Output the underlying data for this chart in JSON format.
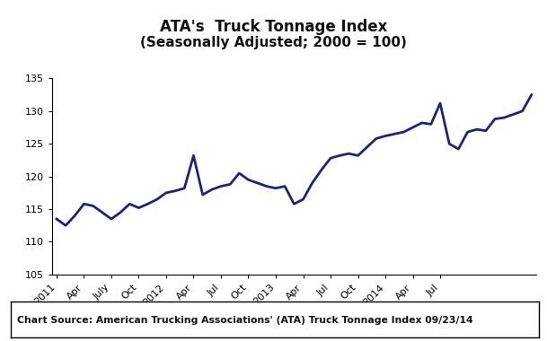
{
  "title_line1": "ATA's  Truck Tonnage Index",
  "title_line2": "(Seasonally Adjusted; 2000 = 100)",
  "line_color": "#1a237e",
  "line_width": 2.0,
  "background_color": "#ffffff",
  "ylim": [
    105,
    135
  ],
  "yticks": [
    105,
    110,
    115,
    120,
    125,
    130,
    135
  ],
  "source_text": "Chart Source: American Trucking Associations' (ATA) Truck Tonnage Index 09/23/14",
  "xtick_labels": [
    "2011",
    "Apr",
    "July",
    "Oct",
    "2012",
    "Apr",
    "Jul",
    "Oct",
    "2013",
    "Apr",
    "Jul",
    "Oct",
    "2014",
    "Apr",
    "Jul"
  ],
  "xtick_positions": [
    0,
    3,
    6,
    9,
    12,
    15,
    18,
    21,
    24,
    27,
    30,
    33,
    36,
    39,
    42
  ],
  "values": [
    113.5,
    112.5,
    114.0,
    115.8,
    115.5,
    114.5,
    113.5,
    114.5,
    115.8,
    115.2,
    115.8,
    116.5,
    117.5,
    117.8,
    118.2,
    123.2,
    117.2,
    118.0,
    118.5,
    118.8,
    120.5,
    119.5,
    119.0,
    118.5,
    118.2,
    118.5,
    115.8,
    116.5,
    119.0,
    121.0,
    122.8,
    123.2,
    123.5,
    123.2,
    124.5,
    125.8,
    126.2,
    126.5,
    126.8,
    127.5,
    128.2,
    128.0,
    131.2,
    125.0,
    124.2,
    126.8,
    127.2,
    127.0,
    128.8,
    129.0,
    129.5,
    130.0,
    132.5
  ]
}
